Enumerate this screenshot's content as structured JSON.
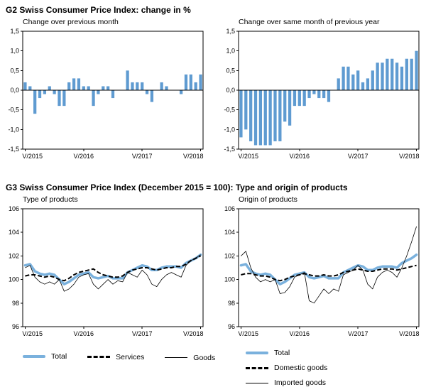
{
  "page": {
    "g2_title": "G2  Swiss Consumer Price Index: change in %",
    "g3_title": "G3  Swiss Consumer Price Index (December 2015 = 100): Type and origin of products"
  },
  "colors": {
    "bar_blue": "#5f9bd1",
    "total_line_blue": "#7ab1dd",
    "line_black": "#000000"
  },
  "chart_data": [
    {
      "id": "change-prev-month",
      "type": "bar",
      "title": "Change over previous month",
      "ylim": [
        -1.5,
        1.5
      ],
      "y_ticks": [
        {
          "v": 1.5,
          "label": "1,5"
        },
        {
          "v": 1.0,
          "label": "1,0"
        },
        {
          "v": 0.5,
          "label": "0,5"
        },
        {
          "v": 0.0,
          "label": "0,0"
        },
        {
          "v": -0.5,
          "label": "-0,5"
        },
        {
          "v": -1.0,
          "label": "-1,0"
        },
        {
          "v": -1.5,
          "label": "-1,5"
        }
      ],
      "x_ticks": [
        {
          "i": 0,
          "label": "V/2015"
        },
        {
          "i": 12,
          "label": "V/2016"
        },
        {
          "i": 24,
          "label": "V/2017"
        },
        {
          "i": 36,
          "label": "V/2018"
        }
      ],
      "values": [
        0.2,
        0.1,
        -0.6,
        -0.2,
        -0.1,
        0.1,
        -0.1,
        -0.4,
        -0.4,
        0.2,
        0.3,
        0.3,
        0.1,
        0.1,
        -0.4,
        -0.1,
        0.1,
        0.1,
        -0.2,
        0.0,
        0.0,
        0.5,
        0.2,
        0.2,
        0.2,
        -0.1,
        -0.3,
        0.0,
        0.2,
        0.1,
        0.0,
        0.0,
        -0.1,
        0.4,
        0.4,
        0.2,
        0.4
      ],
      "bar_color": "#5f9bd1",
      "grid": false,
      "legend": "none"
    },
    {
      "id": "change-same-month-prev-year",
      "type": "bar",
      "title": "Change over same month of previous year",
      "ylim": [
        -1.5,
        1.5
      ],
      "y_ticks": [
        {
          "v": 1.5,
          "label": "1,5"
        },
        {
          "v": 1.0,
          "label": "1,0"
        },
        {
          "v": 0.5,
          "label": "0,5"
        },
        {
          "v": 0.0,
          "label": "0,0"
        },
        {
          "v": -0.5,
          "label": "-0,5"
        },
        {
          "v": -1.0,
          "label": "-1,0"
        },
        {
          "v": -1.5,
          "label": "-1,5"
        }
      ],
      "x_ticks": [
        {
          "i": 0,
          "label": "V/2015"
        },
        {
          "i": 12,
          "label": "V/2016"
        },
        {
          "i": 24,
          "label": "V/2017"
        },
        {
          "i": 36,
          "label": "V/2018"
        }
      ],
      "values": [
        -1.2,
        -1.0,
        -1.3,
        -1.4,
        -1.4,
        -1.4,
        -1.4,
        -1.3,
        -1.3,
        -0.8,
        -0.9,
        -0.4,
        -0.4,
        -0.4,
        -0.2,
        -0.1,
        -0.2,
        -0.2,
        -0.3,
        0.0,
        0.3,
        0.6,
        0.6,
        0.4,
        0.5,
        0.2,
        0.3,
        0.5,
        0.7,
        0.7,
        0.8,
        0.8,
        0.7,
        0.6,
        0.8,
        0.8,
        1.0
      ],
      "bar_color": "#5f9bd1",
      "grid": false,
      "legend": "none"
    },
    {
      "id": "type-of-products",
      "type": "line",
      "title": "Type of products",
      "ylim": [
        96,
        106
      ],
      "y_ticks": [
        {
          "v": 106,
          "label": "106"
        },
        {
          "v": 104,
          "label": "104"
        },
        {
          "v": 102,
          "label": "102"
        },
        {
          "v": 100,
          "label": "100"
        },
        {
          "v": 98,
          "label": "98"
        },
        {
          "v": 96,
          "label": "96"
        }
      ],
      "x_ticks": [
        {
          "i": 0,
          "label": "V/2015"
        },
        {
          "i": 12,
          "label": "V/2016"
        },
        {
          "i": 24,
          "label": "V/2017"
        },
        {
          "i": 36,
          "label": "V/2018"
        }
      ],
      "series": [
        {
          "name": "Total",
          "style": "total",
          "values": [
            101.2,
            101.3,
            100.7,
            100.5,
            100.4,
            100.5,
            100.4,
            100.0,
            99.6,
            99.8,
            100.1,
            100.4,
            100.5,
            100.6,
            100.2,
            100.1,
            100.2,
            100.3,
            100.1,
            100.1,
            100.1,
            100.6,
            100.8,
            101.0,
            101.2,
            101.1,
            100.8,
            100.8,
            101.0,
            101.1,
            101.1,
            101.1,
            101.0,
            101.4,
            101.6,
            101.8,
            102.1
          ]
        },
        {
          "name": "Services",
          "style": "dashed",
          "values": [
            100.3,
            100.4,
            100.4,
            100.3,
            100.2,
            100.3,
            100.2,
            100.0,
            99.9,
            100.1,
            100.4,
            100.6,
            100.7,
            100.8,
            100.9,
            100.6,
            100.4,
            100.3,
            100.2,
            100.2,
            100.3,
            100.6,
            100.8,
            100.9,
            101.0,
            101.0,
            100.9,
            100.8,
            100.9,
            101.0,
            101.0,
            101.1,
            101.1,
            101.3,
            101.6,
            101.8,
            102.0
          ]
        },
        {
          "name": "Goods",
          "style": "thin",
          "values": [
            101.0,
            101.2,
            100.2,
            99.8,
            99.6,
            99.8,
            99.6,
            100.0,
            99.0,
            99.2,
            99.6,
            100.2,
            100.4,
            100.5,
            99.6,
            99.2,
            99.6,
            100.0,
            99.6,
            99.9,
            99.8,
            100.6,
            100.4,
            100.2,
            100.8,
            100.4,
            99.6,
            99.4,
            100.0,
            100.4,
            100.6,
            100.4,
            100.2,
            101.2,
            101.6,
            101.8,
            102.1
          ]
        }
      ],
      "grid": false,
      "legend": "horizontal-below"
    },
    {
      "id": "origin-of-products",
      "type": "line",
      "title": "Origin of products",
      "ylim": [
        96,
        106
      ],
      "y_ticks": [
        {
          "v": 106,
          "label": "106"
        },
        {
          "v": 104,
          "label": "104"
        },
        {
          "v": 102,
          "label": "102"
        },
        {
          "v": 100,
          "label": "100"
        },
        {
          "v": 98,
          "label": "98"
        },
        {
          "v": 96,
          "label": "96"
        }
      ],
      "x_ticks": [
        {
          "i": 0,
          "label": "V/2015"
        },
        {
          "i": 12,
          "label": "V/2016"
        },
        {
          "i": 24,
          "label": "V/2017"
        },
        {
          "i": 36,
          "label": "V/2018"
        }
      ],
      "series": [
        {
          "name": "Total",
          "style": "total",
          "values": [
            101.2,
            101.3,
            100.7,
            100.5,
            100.4,
            100.5,
            100.4,
            100.0,
            99.6,
            99.8,
            100.1,
            100.4,
            100.5,
            100.6,
            100.2,
            100.1,
            100.2,
            100.3,
            100.1,
            100.1,
            100.1,
            100.6,
            100.8,
            101.0,
            101.2,
            101.1,
            100.8,
            100.8,
            101.0,
            101.1,
            101.1,
            101.1,
            101.0,
            101.4,
            101.6,
            101.8,
            102.1
          ]
        },
        {
          "name": "Domestic goods",
          "style": "dashed",
          "values": [
            100.4,
            100.5,
            100.5,
            100.4,
            100.3,
            100.3,
            100.2,
            100.0,
            99.9,
            100.0,
            100.2,
            100.3,
            100.4,
            100.5,
            100.4,
            100.3,
            100.3,
            100.4,
            100.3,
            100.3,
            100.4,
            100.6,
            100.7,
            100.8,
            100.9,
            100.8,
            100.7,
            100.7,
            100.8,
            100.9,
            100.9,
            100.9,
            100.8,
            100.9,
            101.0,
            101.1,
            101.2
          ]
        },
        {
          "name": "Imported goods",
          "style": "thin",
          "values": [
            102.0,
            102.4,
            101.0,
            100.2,
            99.8,
            100.0,
            99.8,
            100.0,
            98.8,
            98.9,
            99.4,
            100.2,
            100.4,
            100.6,
            98.2,
            98.0,
            98.6,
            99.2,
            98.8,
            99.2,
            99.0,
            100.4,
            100.6,
            100.8,
            101.2,
            100.8,
            99.6,
            99.2,
            100.2,
            100.6,
            100.8,
            100.6,
            100.2,
            101.0,
            102.0,
            103.2,
            104.5
          ]
        }
      ],
      "grid": false,
      "legend": "vertical-below"
    }
  ]
}
